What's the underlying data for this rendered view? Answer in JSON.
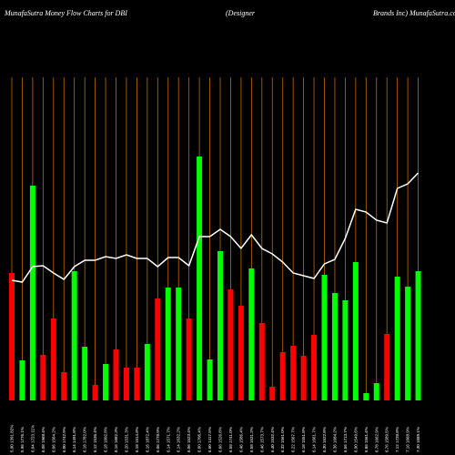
{
  "chart_data": {
    "type": "bar",
    "title": [
      "MunafaSutra  Money Flow  Charts for DBI",
      "(Designer",
      "Brands Inc) MunafaSutra.com"
    ],
    "categories": [
      "5.90 1391.82%",
      "5.96 1776.1%",
      "6.04 1723.11%",
      "6.08 1968.4%",
      "6.06 1564.2%",
      "6.00 1742.9%",
      "6.14 1491.8%",
      "6.18 1782.0%",
      "6.12 1536.4%",
      "6.18 1602.8%",
      "6.16 1682.3%",
      "6.20 1531.3%",
      "6.18 1514.8%",
      "6.16 1872.4%",
      "6.06 1778.9%",
      "6.14 1571.7%",
      "6.14 1632.2%",
      "6.06 1523.4%",
      "6.60 1706.4%",
      "6.60 1417.5%",
      "6.66 1526.8%",
      "6.58 1741.0%",
      "6.46 1586.4%",
      "6.58 1531.2%",
      "6.46 1573.7%",
      "6.40 1532.4%",
      "6.32 1561.0%",
      "6.22 1567.7%",
      "6.18 1551.8%",
      "6.14 1661.7%",
      "6.30 1622.8%",
      "6.36 1684.2%",
      "6.56 1713.7%",
      "6.90 1549.6%",
      "6.86 1561.4%",
      "6.78 1662.9%",
      "6.76 1589.5%",
      "7.12 1728.8%",
      "7.16 1668.9%",
      "7.30 1689.1%"
    ],
    "values": [
      140,
      44,
      236,
      50,
      90,
      31,
      142,
      59,
      17,
      40,
      56,
      36,
      36,
      62,
      112,
      124,
      124,
      90,
      268,
      45,
      164,
      122,
      104,
      145,
      85,
      15,
      53,
      60,
      49,
      72,
      138,
      118,
      110,
      152,
      8,
      19,
      73,
      136,
      125,
      142
    ],
    "colors": [
      "#ff0000",
      "#00ff00",
      "#00ff00",
      "#ff0000",
      "#ff0000",
      "#ff0000",
      "#00ff00",
      "#00ff00",
      "#ff0000",
      "#00ff00",
      "#ff0000",
      "#ff0000",
      "#ff0000",
      "#00ff00",
      "#ff0000",
      "#00ff00",
      "#00ff00",
      "#ff0000",
      "#00ff00",
      "#00ff00",
      "#00ff00",
      "#ff0000",
      "#ff0000",
      "#00ff00",
      "#ff0000",
      "#ff0000",
      "#ff0000",
      "#ff0000",
      "#ff0000",
      "#ff0000",
      "#00ff00",
      "#00ff00",
      "#00ff00",
      "#00ff00",
      "#00ff00",
      "#00ff00",
      "#ff0000",
      "#00ff00",
      "#00ff00",
      "#00ff00"
    ],
    "line": {
      "color": "#ffffff",
      "values": [
        132,
        130,
        147,
        148,
        140,
        133,
        147,
        154,
        154,
        158,
        156,
        160,
        156,
        156,
        147,
        157,
        157,
        148,
        180,
        180,
        188,
        180,
        167,
        182,
        167,
        161,
        152,
        140,
        137,
        134,
        150,
        155,
        178,
        210,
        207,
        198,
        195,
        233,
        238,
        250
      ]
    },
    "ylim": [
      0,
      440
    ],
    "guide_color": "#c06a00"
  }
}
